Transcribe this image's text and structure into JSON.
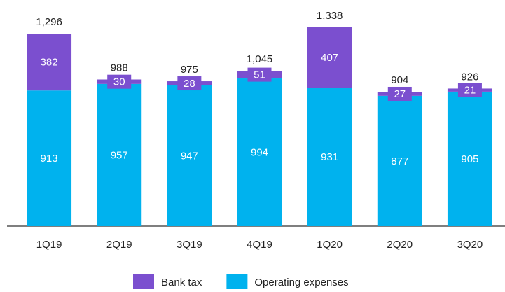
{
  "chart_data": {
    "type": "stacked_bar",
    "categories": [
      "1Q19",
      "2Q19",
      "3Q19",
      "4Q19",
      "1Q20",
      "2Q20",
      "3Q20"
    ],
    "series": [
      {
        "name": "Operating expenses",
        "color": "#00b2ee",
        "values": [
          913,
          957,
          947,
          994,
          931,
          877,
          905
        ]
      },
      {
        "name": "Bank tax",
        "color": "#7b4fcf",
        "values": [
          382,
          30,
          28,
          51,
          407,
          27,
          21
        ]
      }
    ],
    "totals": [
      1296,
      988,
      975,
      1045,
      1338,
      904,
      926
    ],
    "total_labels": [
      "1,296",
      "988",
      "975",
      "1,045",
      "1,338",
      "904",
      "926"
    ],
    "legend": "bottom"
  }
}
